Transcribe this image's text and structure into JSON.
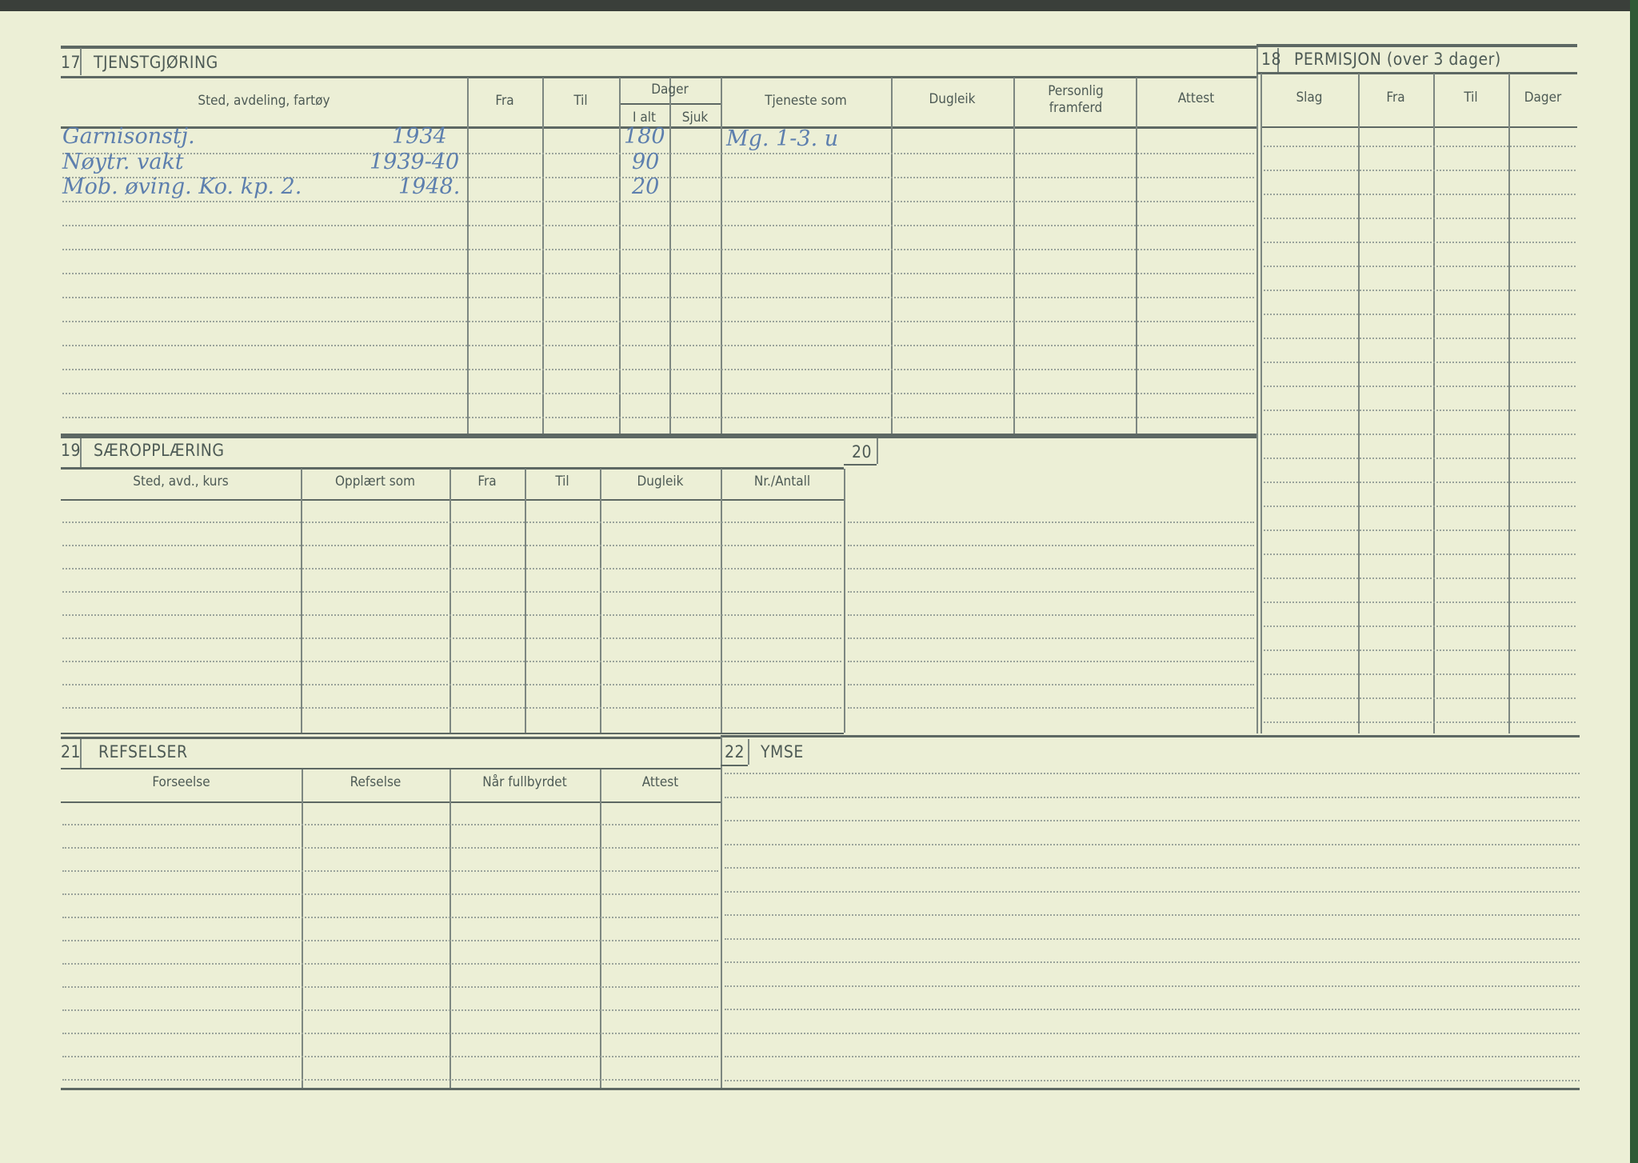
{
  "s17": {
    "num": "17",
    "title": "TJENSTGJØRING",
    "headers": [
      "Sted, avdeling, fartøy",
      "Fra",
      "Til",
      "Dager",
      "I alt",
      "Sjuk",
      "Tjeneste som",
      "Dugleik",
      "Personlig framferd",
      "Attest"
    ],
    "entries": [
      {
        "sted": "Garnisonstj.",
        "year": "1934",
        "i_alt": "180",
        "tjeneste": "Mg. 1-3. u"
      },
      {
        "sted": "Nøytr. vakt",
        "year": "1939-40",
        "i_alt": "90"
      },
      {
        "sted": "Mob. øving. Ko. kp. 2.",
        "year": "1948.",
        "i_alt": "20"
      }
    ]
  },
  "s18": {
    "num": "18",
    "title": "PERMISJON (over 3 dager)",
    "headers": [
      "Slag",
      "Fra",
      "Til",
      "Dager"
    ]
  },
  "s19": {
    "num": "19",
    "title": "SÆROPPLÆRING",
    "headers": [
      "Sted, avd., kurs",
      "Opplært som",
      "Fra",
      "Til",
      "Dugleik",
      "Nr./Antall"
    ]
  },
  "s20": {
    "num": "20"
  },
  "s21": {
    "num": "21",
    "title": "REFSELSER",
    "headers": [
      "Forseelse",
      "Refselse",
      "Når fullbyrdet",
      "Attest"
    ]
  },
  "s22": {
    "num": "22",
    "title": "YMSE"
  }
}
